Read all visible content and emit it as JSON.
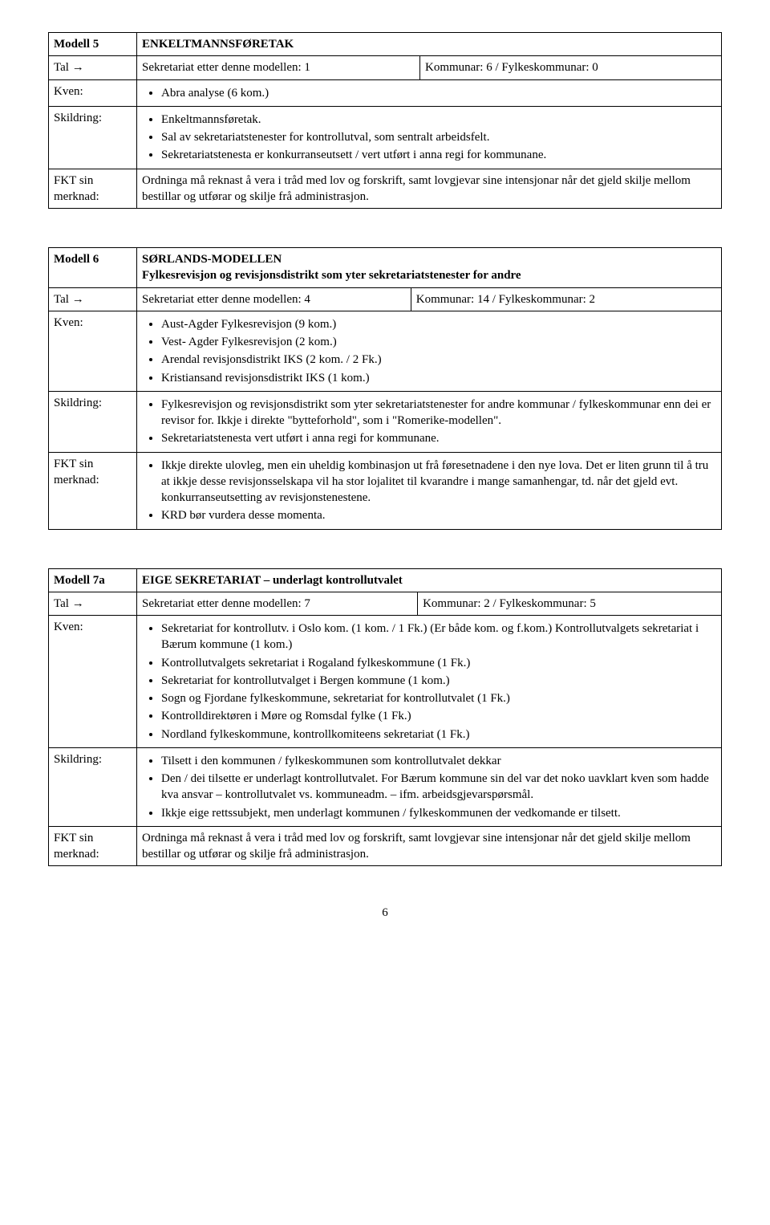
{
  "m5": {
    "label": "Modell 5",
    "title": "ENKELTMANNSFØRETAK",
    "tal_label": "Tal →",
    "tal_left": "Sekretariat etter denne modellen:  1",
    "tal_right": "Kommunar: 6  /  Fylkeskommunar: 0",
    "kven_label": "Kven:",
    "kven_items": [
      "Abra analyse (6 kom.)"
    ],
    "skildring_label": "Skildring:",
    "skildring_items": [
      "Enkeltmannsføretak.",
      "Sal av sekretariatstenester for kontrollutval, som sentralt arbeidsfelt.",
      "Sekretariatstenesta er konkurranseutsett / vert utført i anna regi for kommunane."
    ],
    "merknad_label": "FKT sin\nmerknad:",
    "merknad_text": "Ordninga må reknast å vera i tråd med lov og forskrift, samt lovgjevar sine intensjonar når det gjeld skilje mellom bestillar og utførar og skilje frå administrasjon."
  },
  "m6": {
    "label": "Modell 6",
    "title": "SØRLANDS-MODELLEN",
    "subtitle": "Fylkesrevisjon og revisjonsdistrikt som yter sekretariatstenester for andre",
    "tal_label": "Tal →",
    "tal_left": "Sekretariat etter denne modellen:  4",
    "tal_right": "Kommunar: 14  /  Fylkeskommunar: 2",
    "kven_label": "Kven:",
    "kven_items": [
      "Aust-Agder Fylkesrevisjon (9 kom.)",
      "Vest- Agder Fylkesrevisjon (2 kom.)",
      "Arendal revisjonsdistrikt IKS (2 kom. / 2 Fk.)",
      "Kristiansand revisjonsdistrikt IKS (1 kom.)"
    ],
    "skildring_label": "Skildring:",
    "skildring_items": [
      "Fylkesrevisjon og revisjonsdistrikt som yter sekretariatstenester for andre kommunar / fylkeskommunar enn dei er revisor for. Ikkje i direkte \"bytteforhold\", som i \"Romerike-modellen\".",
      "Sekretariatstenesta vert utført i anna regi for kommunane."
    ],
    "merknad_label": "FKT sin\nmerknad:",
    "merknad_items": [
      "Ikkje direkte ulovleg, men ein uheldig kombinasjon ut frå føresetnadene i den nye lova. Det er liten grunn til å tru at ikkje desse revisjonsselskapa vil ha stor lojalitet til kvarandre i mange samanhengar, td. når det gjeld evt. konkurranseutsetting av revisjonstenestene.",
      "KRD bør vurdera desse momenta."
    ]
  },
  "m7a": {
    "label": "Modell 7a",
    "title": "EIGE SEKRETARIAT – underlagt kontrollutvalet",
    "tal_label": "Tal →",
    "tal_left": "Sekretariat etter denne modellen:  7",
    "tal_right": "Kommunar: 2  /  Fylkeskommunar: 5",
    "kven_label": "Kven:",
    "kven_items": [
      "Sekretariat for kontrollutv. i Oslo kom. (1 kom. / 1 Fk.) (Er både kom. og f.kom.) Kontrollutvalgets sekretariat i Bærum kommune (1 kom.)",
      "Kontrollutvalgets sekretariat i Rogaland fylkeskommune (1 Fk.)",
      "Sekretariat for kontrollutvalget i Bergen kommune (1 kom.)",
      "Sogn og Fjordane fylkeskommune, sekretariat for kontrollutvalet (1 Fk.)",
      "Kontrolldirektøren i Møre og Romsdal fylke (1 Fk.)",
      "Nordland fylkeskommune, kontrollkomiteens sekretariat (1 Fk.)"
    ],
    "skildring_label": "Skildring:",
    "skildring_items": [
      "Tilsett i den kommunen / fylkeskommunen som kontrollutvalet dekkar",
      "Den / dei tilsette er underlagt kontrollutvalet. For Bærum kommune sin del var det noko uavklart kven som hadde kva ansvar – kontrollutvalet vs. kommuneadm. – ifm. arbeidsgjevarspørsmål.",
      "Ikkje eige rettssubjekt, men underlagt kommunen / fylkeskommunen der vedkomande er tilsett."
    ],
    "merknad_label": "FKT sin\nmerknad:",
    "merknad_text": "Ordninga må reknast å vera i tråd med lov og forskrift, samt lovgjevar sine intensjonar når det gjeld skilje mellom bestillar og utførar og skilje frå administrasjon."
  },
  "page_number": "6"
}
